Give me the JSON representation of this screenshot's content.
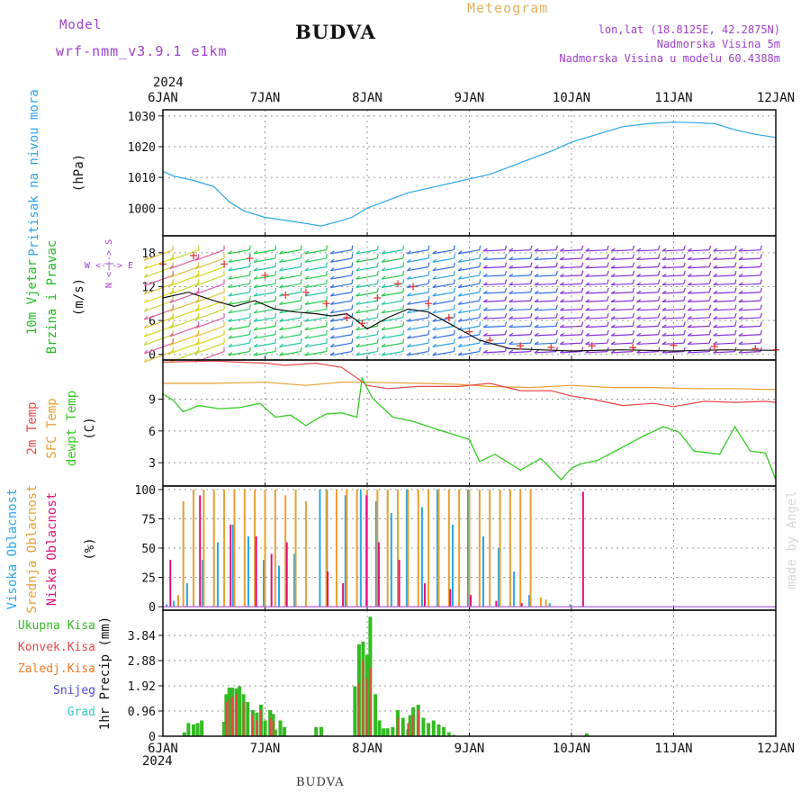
{
  "header": {
    "model_label": "Model",
    "model_name": "wrf-nmm_v3.9.1 e1km",
    "station_title": "BUDVA",
    "meteogram_label": "Meteogram",
    "lonlat": "lon,lat (18.8125E, 42.2875N)",
    "altitude": "Nadmorska Visina 5m",
    "model_altitude": "Nadmorska Visina u modelu 60.4388m",
    "footer_station": "BUDVA",
    "credit": "made by Angel",
    "year_top": "2024",
    "year_bottom": "2024"
  },
  "colors": {
    "pressure": "#2aa7e8",
    "wind_label": "#22bb22",
    "wind_speed": "#111111",
    "wind_gust": "#e83c3c",
    "temp2m": "#e84848",
    "sfc_temp": "#e8a030",
    "dewpoint": "#33cc22",
    "high_cloud": "#2aa7e8",
    "mid_cloud": "#e8a030",
    "low_cloud": "#e0107a",
    "total_precip": "#33bb22",
    "conv_precip": "#e84848",
    "frozen_precip": "#f07a28",
    "snow": "#4a4ae0",
    "hail": "#33c8c8",
    "purple_text": "#a040d0",
    "orange_text": "#e8b060"
  },
  "chart_data": [
    {
      "type": "line",
      "panel": "pressure",
      "title": "",
      "ylabel_lines": [
        "Pritisak na nivou mora",
        "(hPa)"
      ],
      "x_ticks": [
        "6JAN",
        "7JAN",
        "8JAN",
        "9JAN",
        "10JAN",
        "11JAN",
        "12JAN"
      ],
      "xlim_days": [
        0,
        6
      ],
      "ylim": [
        991,
        1032
      ],
      "yticks": [
        1000,
        1010,
        1020,
        1030
      ],
      "grid": true,
      "series": [
        {
          "x": [
            0,
            0.1,
            0.3,
            0.5,
            0.65,
            0.8,
            1.0,
            1.2,
            1.4,
            1.55,
            1.7,
            1.85,
            2.0,
            2.2,
            2.4,
            2.6,
            2.8,
            3.0,
            3.2,
            3.4,
            3.6,
            3.8,
            4.0,
            4.25,
            4.5,
            4.75,
            5.0,
            5.2,
            5.4,
            5.6,
            5.8,
            6.0
          ],
          "y": [
            1012,
            1010.5,
            1009,
            1007,
            1002,
            999,
            997,
            996,
            995,
            994.2,
            995.5,
            997,
            1000,
            1002.5,
            1005,
            1006.5,
            1008,
            1009.5,
            1011,
            1013.5,
            1016,
            1018.5,
            1021.5,
            1024,
            1026.5,
            1027.5,
            1028,
            1027.8,
            1027.5,
            1025.5,
            1024,
            1023
          ]
        }
      ]
    },
    {
      "type": "line",
      "panel": "wind",
      "title": "",
      "ylabel_lines": [
        "10m Vjetar",
        "Brzina i Pravac",
        "(m/s)"
      ],
      "compass_vertical": "N <-|-> S",
      "compass_horizontal": "W <-|-> E",
      "ylim": [
        -1,
        21
      ],
      "yticks": [
        0,
        6,
        12,
        18
      ],
      "grid": true,
      "series": [
        {
          "name": "speed",
          "x": [
            0,
            0.25,
            0.5,
            0.7,
            0.9,
            1.1,
            1.3,
            1.5,
            1.65,
            1.8,
            1.9,
            2.0,
            2.2,
            2.4,
            2.6,
            2.8,
            2.9,
            3.1,
            3.4,
            3.7,
            4.0,
            4.5,
            5.0,
            5.5,
            6.0
          ],
          "y": [
            10,
            11,
            9.5,
            8.5,
            9.5,
            8,
            7.5,
            7.2,
            6.8,
            7.2,
            6.0,
            4.5,
            6.5,
            8,
            7.5,
            5.5,
            4.5,
            2.5,
            1,
            0.8,
            0.6,
            0.8,
            0.6,
            0.8,
            0.7
          ]
        },
        {
          "name": "gust",
          "x": [
            0,
            0.3,
            0.6,
            0.85,
            1.0,
            1.2,
            1.4,
            1.6,
            1.8,
            1.95,
            2.1,
            2.3,
            2.45,
            2.6,
            2.8,
            3.0,
            3.2,
            3.5,
            3.8,
            4.2,
            4.6,
            5.0,
            5.4,
            5.8,
            6.0
          ],
          "y": [
            16,
            17.5,
            16,
            17,
            14,
            10.5,
            11,
            9,
            6.5,
            5.5,
            10,
            12.5,
            12,
            9,
            6.5,
            4,
            2.5,
            1.5,
            1.2,
            1.5,
            1.2,
            1.6,
            1.4,
            1.0,
            0.8
          ]
        }
      ],
      "wind_barbs": {
        "rows_m_s": [
          0.5,
          2,
          3.5,
          5,
          6.5,
          8,
          9.5,
          11,
          12.5,
          14,
          15.5,
          17,
          18.5
        ],
        "columns_days": [
          0.1,
          0.35,
          0.6,
          0.85,
          1.1,
          1.35,
          1.6,
          1.85,
          2.1,
          2.35,
          2.6,
          2.85,
          3.1,
          3.35,
          3.6,
          3.85,
          4.1,
          4.35,
          4.6,
          4.85,
          5.1,
          5.35,
          5.6,
          5.85
        ]
      }
    },
    {
      "type": "line",
      "panel": "temperature",
      "title": "",
      "ylabel_lines": [
        "2m Temp",
        "SFC Temp",
        "dewpt Temp",
        "(C)"
      ],
      "ylim": [
        0.8,
        12.7
      ],
      "yticks": [
        3,
        6,
        9
      ],
      "grid": true,
      "series": [
        {
          "name": "2m Temp",
          "x": [
            0,
            0.5,
            1.0,
            1.2,
            1.5,
            1.75,
            1.9,
            2.0,
            2.2,
            2.5,
            2.9,
            3.2,
            3.5,
            3.8,
            4.0,
            4.2,
            4.5,
            4.8,
            5.0,
            5.3,
            5.6,
            5.9,
            6.0
          ],
          "y": [
            12.5,
            12.6,
            12.4,
            12.2,
            12.4,
            12.0,
            11.0,
            10.3,
            10.0,
            10.2,
            10.2,
            10.5,
            9.8,
            9.8,
            9.3,
            9.0,
            8.4,
            8.6,
            8.3,
            8.8,
            8.7,
            8.8,
            8.7
          ]
        },
        {
          "name": "SFC Temp",
          "x": [
            0,
            0.5,
            1.0,
            1.4,
            1.75,
            2.0,
            2.5,
            2.9,
            3.2,
            3.6,
            4.0,
            4.4,
            4.8,
            5.2,
            5.6,
            6.0
          ],
          "y": [
            10.5,
            10.5,
            10.6,
            10.3,
            10.6,
            10.6,
            10.5,
            10.4,
            10.2,
            10.1,
            10.3,
            10.1,
            10.1,
            10.0,
            10.0,
            9.9
          ]
        },
        {
          "name": "dewpt Temp",
          "x": [
            0,
            0.1,
            0.2,
            0.35,
            0.55,
            0.75,
            0.95,
            1.1,
            1.25,
            1.4,
            1.5,
            1.6,
            1.75,
            1.9,
            1.95,
            2.05,
            2.25,
            2.45,
            2.7,
            3.0,
            3.1,
            3.25,
            3.5,
            3.7,
            3.9,
            4.0,
            4.1,
            4.25,
            4.45,
            4.7,
            4.9,
            5.05,
            5.2,
            5.45,
            5.6,
            5.75,
            5.9,
            6.0
          ],
          "y": [
            9.5,
            8.9,
            7.8,
            8.4,
            8.1,
            8.2,
            8.6,
            7.3,
            7.5,
            6.5,
            7.1,
            7.6,
            7.7,
            7.3,
            11.0,
            9.1,
            7.3,
            6.9,
            6.1,
            5.2,
            3.1,
            3.8,
            2.3,
            3.4,
            1.4,
            2.5,
            2.9,
            3.2,
            4.2,
            5.5,
            6.4,
            5.9,
            4.1,
            3.8,
            6.4,
            4.1,
            3.9,
            1.4
          ]
        }
      ]
    },
    {
      "type": "bar",
      "panel": "cloud",
      "title": "",
      "ylabel_lines": [
        "Visoka Oblacnost",
        "Srednja Oblacnost",
        "Niska Oblacnost",
        "(%)"
      ],
      "ylim": [
        -3,
        103
      ],
      "yticks": [
        0,
        25,
        50,
        75,
        100
      ],
      "grid": true,
      "series": [
        {
          "name": "Visoka Oblacnost",
          "x": [
            0.05,
            0.12,
            0.25,
            0.4,
            0.55,
            0.7,
            0.85,
            1.0,
            1.15,
            1.3,
            1.45,
            1.55,
            1.62,
            1.8,
            1.95,
            2.1,
            2.25,
            2.4,
            2.55,
            2.7,
            2.85,
            3.0,
            3.15,
            3.3,
            3.45,
            3.6,
            3.8,
            4.0
          ],
          "y": [
            2,
            5,
            20,
            40,
            55,
            70,
            60,
            40,
            35,
            45,
            0,
            100,
            100,
            95,
            100,
            90,
            80,
            100,
            85,
            100,
            70,
            100,
            60,
            50,
            30,
            10,
            3,
            2
          ]
        },
        {
          "name": "Srednja Oblacnost",
          "x": [
            0.15,
            0.2,
            0.3,
            0.4,
            0.5,
            0.6,
            0.7,
            0.8,
            0.9,
            1.0,
            1.1,
            1.2,
            1.3,
            1.4,
            1.6,
            1.7,
            1.8,
            1.9,
            2.0,
            2.1,
            2.2,
            2.3,
            2.4,
            2.5,
            2.6,
            2.7,
            2.8,
            2.9,
            3.0,
            3.1,
            3.2,
            3.3,
            3.4,
            3.5,
            3.6,
            3.7,
            3.75
          ],
          "y": [
            10,
            90,
            100,
            100,
            100,
            100,
            100,
            100,
            100,
            100,
            100,
            95,
            100,
            90,
            100,
            100,
            100,
            100,
            100,
            100,
            100,
            100,
            100,
            100,
            100,
            100,
            100,
            100,
            100,
            100,
            100,
            100,
            100,
            100,
            100,
            8,
            6
          ]
        },
        {
          "name": "Niska Oblacnost",
          "x": [
            0.06,
            0.35,
            0.65,
            0.9,
            1.05,
            1.2,
            1.6,
            1.75,
            1.98,
            2.1,
            2.3,
            2.55,
            2.8,
            3.0,
            3.25,
            3.5,
            4.1
          ],
          "y": [
            40,
            95,
            70,
            60,
            45,
            55,
            30,
            20,
            95,
            55,
            40,
            20,
            15,
            10,
            5,
            3,
            98
          ]
        }
      ]
    },
    {
      "type": "bar",
      "panel": "precip",
      "title": "",
      "ylabel": "1hr Precip (mm)",
      "legend": [
        "Ukupna Kisa",
        "Konvek.Kisa",
        "Zaledj.Kisa",
        "Snijeg",
        "Grad"
      ],
      "ylim": [
        0,
        4.8
      ],
      "yticks": [
        0,
        0.96,
        1.92,
        2.88,
        3.84
      ],
      "grid": true,
      "series": [
        {
          "name": "Ukupna Kisa",
          "x": [
            0.21,
            0.25,
            0.3,
            0.34,
            0.38,
            0.6,
            0.62,
            0.65,
            0.68,
            0.72,
            0.75,
            0.79,
            0.83,
            0.88,
            0.92,
            0.96,
            1.0,
            1.05,
            1.08,
            1.1,
            1.15,
            1.19,
            1.5,
            1.55,
            1.88,
            1.92,
            1.96,
            2.0,
            2.03,
            2.08,
            2.12,
            2.16,
            2.2,
            2.25,
            2.3,
            2.35,
            2.4,
            2.42,
            2.45,
            2.5,
            2.55,
            2.6,
            2.65,
            2.7,
            2.75,
            2.8,
            2.85,
            4.15
          ],
          "y": [
            0.15,
            0.5,
            0.45,
            0.5,
            0.6,
            0.55,
            1.6,
            1.85,
            1.85,
            1.82,
            1.9,
            1.6,
            1.3,
            1.0,
            0.9,
            1.2,
            0.6,
            1.0,
            0.85,
            0.25,
            0.6,
            0.35,
            0.35,
            0.35,
            1.9,
            3.5,
            3.6,
            3.1,
            4.55,
            1.6,
            0.6,
            0.3,
            0.3,
            0.35,
            1.0,
            0.7,
            0.25,
            0.8,
            1.1,
            1.2,
            0.7,
            0.5,
            0.6,
            0.45,
            0.35,
            0.15,
            0.05,
            0.1
          ]
        },
        {
          "name": "Konvek.Kisa",
          "x": [
            0.62,
            0.65,
            0.68,
            0.72,
            0.79,
            0.88,
            0.92,
            0.96,
            1.05,
            1.08,
            1.92,
            1.96,
            2.0,
            2.03,
            2.3,
            2.4,
            2.45,
            2.5
          ],
          "y": [
            1.3,
            1.4,
            1.5,
            1.6,
            1.3,
            0.8,
            0.6,
            1.0,
            0.7,
            0.6,
            2.0,
            2.9,
            2.2,
            2.6,
            0.7,
            0.5,
            0.8,
            1.0
          ]
        }
      ]
    }
  ]
}
